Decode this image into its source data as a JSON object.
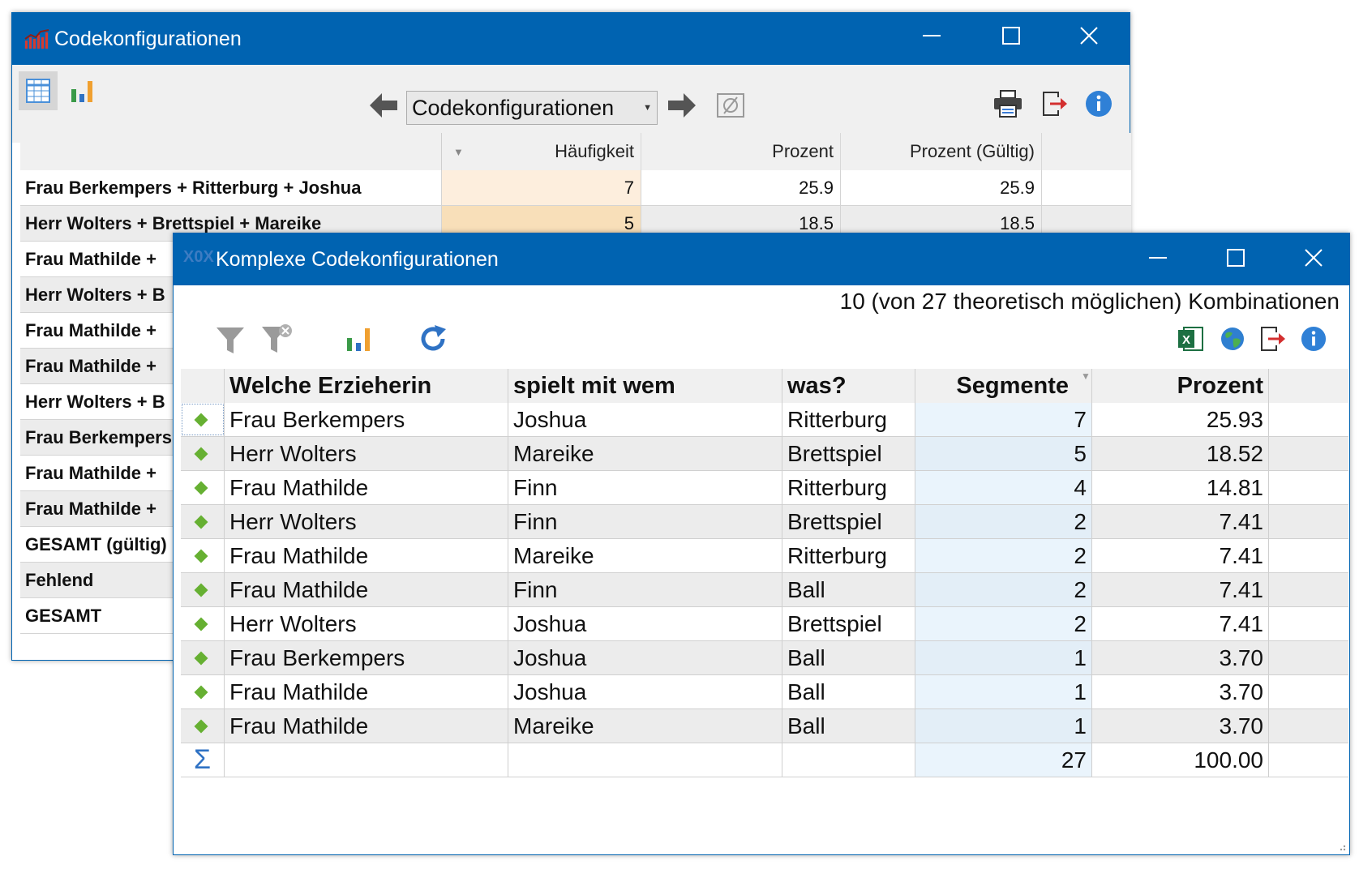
{
  "window1": {
    "title": "Codekonfigurationen",
    "dropdown_value": "Codekonfigurationen",
    "columns": [
      "Häufigkeit",
      "Prozent",
      "Prozent (Gültig)"
    ],
    "rows": [
      {
        "label": "Frau Berkempers + Ritterburg + Joshua",
        "haeufigkeit": "7",
        "prozent": "25.9",
        "prozent_gueltig": "25.9"
      },
      {
        "label": "Herr Wolters + Brettspiel + Mareike",
        "haeufigkeit": "5",
        "prozent": "18.5",
        "prozent_gueltig": "18.5"
      },
      {
        "label": "Frau Mathilde + ",
        "haeufigkeit": "",
        "prozent": "",
        "prozent_gueltig": ""
      },
      {
        "label": "Herr Wolters + B",
        "haeufigkeit": "",
        "prozent": "",
        "prozent_gueltig": ""
      },
      {
        "label": "Frau Mathilde + ",
        "haeufigkeit": "",
        "prozent": "",
        "prozent_gueltig": ""
      },
      {
        "label": "Frau Mathilde + ",
        "haeufigkeit": "",
        "prozent": "",
        "prozent_gueltig": ""
      },
      {
        "label": "Herr Wolters + B",
        "haeufigkeit": "",
        "prozent": "",
        "prozent_gueltig": ""
      },
      {
        "label": "Frau Berkempers",
        "haeufigkeit": "",
        "prozent": "",
        "prozent_gueltig": ""
      },
      {
        "label": "Frau Mathilde + ",
        "haeufigkeit": "",
        "prozent": "",
        "prozent_gueltig": ""
      },
      {
        "label": "Frau Mathilde + ",
        "haeufigkeit": "",
        "prozent": "",
        "prozent_gueltig": ""
      },
      {
        "label": "GESAMT (gültig)",
        "haeufigkeit": "",
        "prozent": "",
        "prozent_gueltig": ""
      },
      {
        "label": "Fehlend",
        "haeufigkeit": "",
        "prozent": "",
        "prozent_gueltig": ""
      },
      {
        "label": "GESAMT",
        "haeufigkeit": "",
        "prozent": "",
        "prozent_gueltig": ""
      }
    ]
  },
  "window2": {
    "title": "Komplexe Codekonfigurationen",
    "summary": "10 (von 27 theoretisch möglichen) Kombinationen",
    "columns": [
      "Welche Erzieherin",
      "spielt mit wem",
      "was?",
      "Segmente",
      "Prozent"
    ],
    "rows": [
      [
        "Frau Berkempers",
        "Joshua",
        "Ritterburg",
        "7",
        "25.93"
      ],
      [
        "Herr Wolters",
        "Mareike",
        "Brettspiel",
        "5",
        "18.52"
      ],
      [
        "Frau Mathilde",
        "Finn",
        "Ritterburg",
        "4",
        "14.81"
      ],
      [
        "Herr Wolters",
        "Finn",
        "Brettspiel",
        "2",
        "7.41"
      ],
      [
        "Frau Mathilde",
        "Mareike",
        "Ritterburg",
        "2",
        "7.41"
      ],
      [
        "Frau Mathilde",
        "Finn",
        "Ball",
        "2",
        "7.41"
      ],
      [
        "Herr Wolters",
        "Joshua",
        "Brettspiel",
        "2",
        "7.41"
      ],
      [
        "Frau Berkempers",
        "Joshua",
        "Ball",
        "1",
        "3.70"
      ],
      [
        "Frau Mathilde",
        "Joshua",
        "Ball",
        "1",
        "3.70"
      ],
      [
        "Frau Mathilde",
        "Mareike",
        "Ball",
        "1",
        "3.70"
      ]
    ],
    "totals": {
      "segmente": "27",
      "prozent": "100.00"
    }
  },
  "icons": {
    "table_view": "table-icon",
    "chart_view": "bar-chart-icon",
    "back": "arrow-left-icon",
    "forward": "arrow-right-icon",
    "empty": "empty-set-icon",
    "print": "printer-icon",
    "export": "export-icon",
    "info": "info-icon",
    "filter": "filter-icon",
    "clear_filter": "clear-filter-icon",
    "refresh": "refresh-icon",
    "excel": "excel-icon",
    "web": "globe-icon",
    "sum": "sigma-icon"
  },
  "colors": {
    "titlebar": "#0063B1",
    "highlight_light": "#fdeedd",
    "highlight_dark": "#f8dfb9",
    "segment_bg": "#eaf4fc",
    "diamond": "#66b032"
  }
}
